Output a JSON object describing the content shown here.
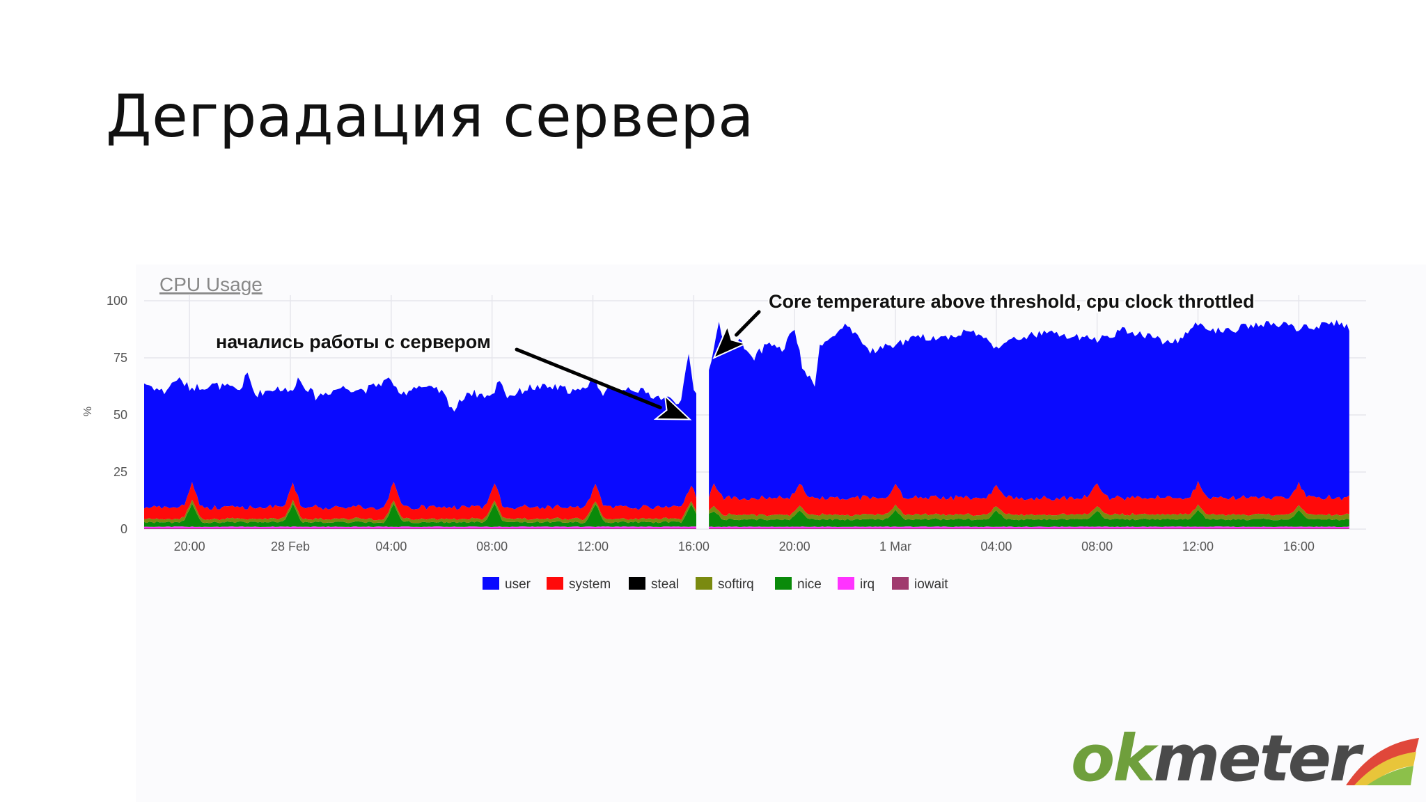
{
  "slide": {
    "title": "Деградация сервера"
  },
  "logo": {
    "part1": "ok",
    "part2": "meter",
    "colors": {
      "ok": "#6f9f3c",
      "meter": "#4a4a4a",
      "swoosh_red": "#e0473a",
      "swoosh_yellow": "#e8c53a",
      "swoosh_green": "#8cc04a"
    }
  },
  "chart_data": {
    "type": "area",
    "stacked": true,
    "title": "CPU Usage",
    "ylabel": "%",
    "xlabel": "",
    "ylim": [
      0,
      100
    ],
    "yticks": [
      0,
      25,
      50,
      75,
      100
    ],
    "grid": true,
    "legend_position": "bottom",
    "x_tick_labels": [
      "20:00",
      "28 Feb",
      "04:00",
      "08:00",
      "12:00",
      "16:00",
      "20:00",
      "1 Mar",
      "04:00",
      "08:00",
      "12:00",
      "16:00"
    ],
    "x_tick_hours": [
      20,
      24,
      28,
      32,
      36,
      40,
      44,
      48,
      52,
      56,
      60,
      64
    ],
    "x_range_hours": [
      18.2,
      66.2
    ],
    "x_note": "hours from 27 Feb 00:00",
    "gap_hours": [
      40.1,
      40.6
    ],
    "annotations": [
      {
        "text": "начались работы с сервером",
        "points_to_hour": 39.85,
        "points_to_value": 48
      },
      {
        "text": "Core temperature above threshold, cpu clock throttled",
        "points_to_hour": 40.8,
        "points_to_value": 75
      }
    ],
    "series": [
      {
        "name": "iowait",
        "color": "#a03a6e",
        "values_hint": "~0.3"
      },
      {
        "name": "irq",
        "color": "#ff33ff",
        "values_hint": "~0.7"
      },
      {
        "name": "nice",
        "color": "#0a8a0a",
        "values_hint": "~2.5"
      },
      {
        "name": "softirq",
        "color": "#7a8a10",
        "values_hint": "~1.5"
      },
      {
        "name": "steal",
        "color": "#000000",
        "values_hint": "0"
      },
      {
        "name": "system",
        "color": "#ff0a0a",
        "values_hint": "~5"
      },
      {
        "name": "user",
        "color": "#0a0aff",
        "values_hint": "~45 before work, ~75 after"
      }
    ],
    "legend": [
      "user",
      "system",
      "steal",
      "softirq",
      "nice",
      "irq",
      "iowait"
    ],
    "total_keypoints": [
      [
        18.2,
        64
      ],
      [
        19.0,
        60
      ],
      [
        19.5,
        66
      ],
      [
        20.0,
        62
      ],
      [
        21.0,
        63
      ],
      [
        22.0,
        61
      ],
      [
        22.3,
        68
      ],
      [
        22.6,
        59
      ],
      [
        23.5,
        62
      ],
      [
        24.0,
        60
      ],
      [
        24.3,
        66
      ],
      [
        25.0,
        58
      ],
      [
        26.0,
        62
      ],
      [
        27.0,
        61
      ],
      [
        28.0,
        66
      ],
      [
        28.3,
        58
      ],
      [
        29.0,
        63
      ],
      [
        30.0,
        60
      ],
      [
        30.5,
        52
      ],
      [
        31.0,
        60
      ],
      [
        32.0,
        58
      ],
      [
        32.3,
        66
      ],
      [
        32.6,
        58
      ],
      [
        33.5,
        62
      ],
      [
        34.5,
        62
      ],
      [
        35.5,
        60
      ],
      [
        36.0,
        66
      ],
      [
        36.4,
        60
      ],
      [
        37.5,
        62
      ],
      [
        38.5,
        58
      ],
      [
        39.5,
        56
      ],
      [
        39.8,
        76
      ],
      [
        40.05,
        58
      ],
      [
        40.65,
        72
      ],
      [
        41.0,
        90
      ],
      [
        41.3,
        79
      ],
      [
        41.8,
        83
      ],
      [
        42.3,
        74
      ],
      [
        43.0,
        82
      ],
      [
        43.5,
        78
      ],
      [
        44.0,
        88
      ],
      [
        44.3,
        71
      ],
      [
        44.8,
        62
      ],
      [
        45.0,
        82
      ],
      [
        45.3,
        82
      ],
      [
        46.0,
        89
      ],
      [
        47.0,
        78
      ],
      [
        48.0,
        81
      ],
      [
        49.0,
        84
      ],
      [
        50.0,
        84
      ],
      [
        51.0,
        87
      ],
      [
        52.0,
        80
      ],
      [
        53.0,
        84
      ],
      [
        54.0,
        86
      ],
      [
        55.0,
        84
      ],
      [
        56.0,
        83
      ],
      [
        57.0,
        87
      ],
      [
        58.0,
        85
      ],
      [
        59.0,
        81
      ],
      [
        60.0,
        90
      ],
      [
        61.0,
        86
      ],
      [
        62.0,
        89
      ],
      [
        63.0,
        90
      ],
      [
        64.0,
        88
      ],
      [
        65.0,
        89
      ],
      [
        65.7,
        91
      ],
      [
        66.0,
        87
      ]
    ]
  }
}
